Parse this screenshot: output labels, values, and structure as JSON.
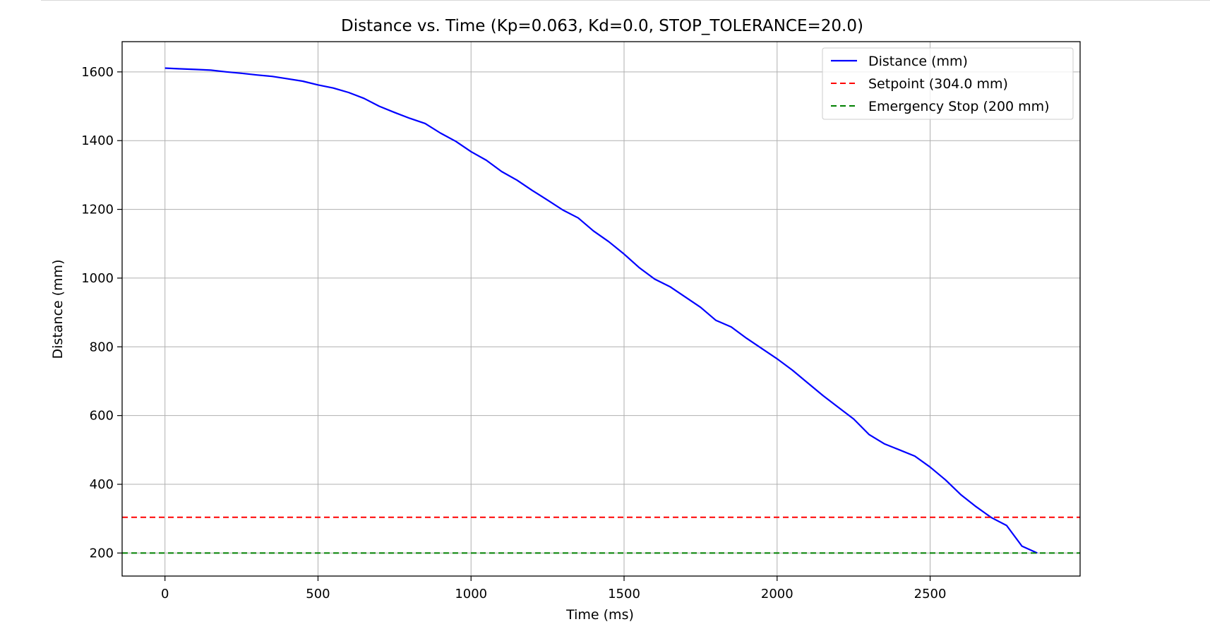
{
  "chart_data": {
    "type": "line",
    "title": "Distance vs. Time (Kp=0.063, Kd=0.0, STOP_TOLERANCE=20.0)",
    "xlabel": "Time (ms)",
    "ylabel": "Distance (mm)",
    "xlim": [
      -140,
      2990
    ],
    "ylim": [
      133,
      1688
    ],
    "xticks": [
      0,
      500,
      1000,
      1500,
      2000,
      2500
    ],
    "yticks": [
      200,
      400,
      600,
      800,
      1000,
      1200,
      1400,
      1600
    ],
    "grid": true,
    "legend_position": "top-right",
    "series": [
      {
        "name": "Distance (mm)",
        "style": "solid",
        "color": "#0000ff",
        "x": [
          0,
          50,
          100,
          150,
          200,
          250,
          300,
          350,
          400,
          450,
          500,
          550,
          600,
          650,
          700,
          750,
          800,
          850,
          900,
          950,
          1000,
          1050,
          1100,
          1150,
          1200,
          1250,
          1300,
          1350,
          1400,
          1450,
          1500,
          1550,
          1600,
          1650,
          1700,
          1750,
          1800,
          1850,
          1900,
          1950,
          2000,
          2050,
          2100,
          2150,
          2200,
          2250,
          2300,
          2350,
          2400,
          2450,
          2500,
          2550,
          2600,
          2650,
          2700,
          2750,
          2800,
          2850
        ],
        "y": [
          1611,
          1609,
          1607,
          1605,
          1600,
          1596,
          1591,
          1587,
          1580,
          1573,
          1562,
          1553,
          1540,
          1523,
          1500,
          1482,
          1465,
          1450,
          1422,
          1398,
          1368,
          1343,
          1310,
          1285,
          1255,
          1227,
          1198,
          1175,
          1137,
          1106,
          1070,
          1030,
          997,
          975,
          945,
          915,
          877,
          858,
          825,
          795,
          765,
          732,
          695,
          658,
          624,
          590,
          545,
          518,
          500,
          482,
          450,
          413,
          370,
          335,
          303,
          280,
          220,
          200
        ]
      },
      {
        "name": "Setpoint (304.0 mm)",
        "style": "dashed",
        "color": "#ff0000",
        "y_constant": 304.0
      },
      {
        "name": "Emergency Stop (200 mm)",
        "style": "dashed",
        "color": "#008000",
        "y_constant": 200
      }
    ]
  }
}
